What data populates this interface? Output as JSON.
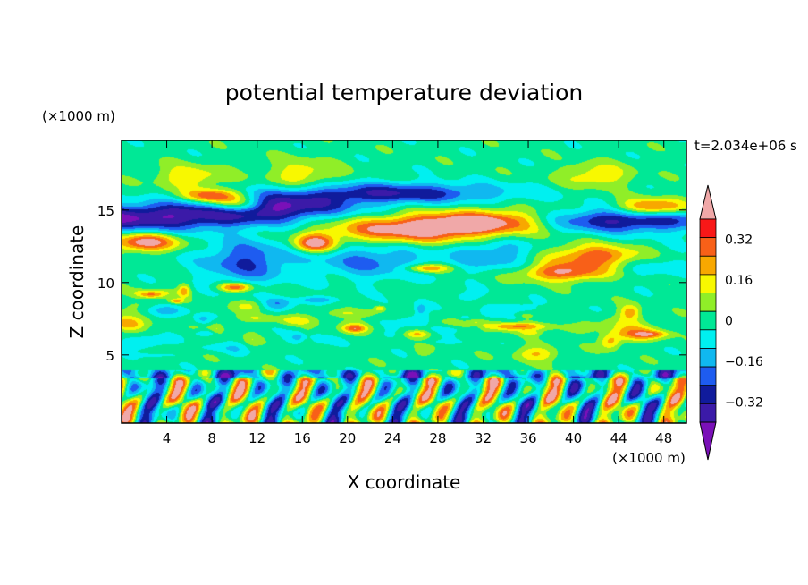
{
  "chart_data": {
    "type": "heatmap",
    "title": "potential temperature deviation",
    "xlabel": "X coordinate",
    "ylabel": "Z coordinate",
    "x_unit": "(×1000 m)",
    "y_unit": "(×1000 m)",
    "time_label": "t=2.034e+06 s",
    "xlim": [
      0,
      50
    ],
    "ylim": [
      0.3,
      19.8
    ],
    "x_ticks": [
      4,
      8,
      12,
      16,
      20,
      24,
      28,
      32,
      36,
      40,
      44,
      48
    ],
    "y_ticks": [
      5,
      10,
      15
    ],
    "colorbar": {
      "levels": [
        -0.4,
        -0.32,
        -0.24,
        -0.16,
        -0.08,
        0,
        0.08,
        0.16,
        0.24,
        0.32,
        0.4
      ],
      "tick_labels": [
        "0.32",
        "0.16",
        "0",
        "−0.16",
        "−0.32"
      ],
      "tick_values": [
        0.32,
        0.16,
        0,
        -0.16,
        -0.32
      ],
      "colors": [
        "#7a10b8",
        "#3b1aa8",
        "#101b9c",
        "#1e5cf0",
        "#10b8f0",
        "#00f0f0",
        "#00e896",
        "#90ee28",
        "#f8f800",
        "#f8a800",
        "#f86018",
        "#f81818",
        "#f0a8a8"
      ],
      "extend": "both"
    },
    "features": [
      {
        "x": 0,
        "z": 14.5,
        "v": -0.45,
        "rx": 14,
        "rz": 0.9
      },
      {
        "x": 13,
        "z": 15.3,
        "v": -0.4,
        "rx": 7,
        "rz": 0.8
      },
      {
        "x": 24,
        "z": 16.2,
        "v": -0.35,
        "rx": 10,
        "rz": 0.7
      },
      {
        "x": 44,
        "z": 14.3,
        "v": -0.4,
        "rx": 9,
        "rz": 0.8
      },
      {
        "x": 26,
        "z": 13.7,
        "v": 0.45,
        "rx": 8,
        "rz": 0.9
      },
      {
        "x": 33,
        "z": 14.3,
        "v": 0.38,
        "rx": 6,
        "rz": 0.8
      },
      {
        "x": 8,
        "z": 16.0,
        "v": 0.42,
        "rx": 2.5,
        "rz": 0.5
      },
      {
        "x": 10,
        "z": 15.4,
        "v": 0.42,
        "rx": 2.5,
        "rz": 0.6
      },
      {
        "x": 2,
        "z": 12.8,
        "v": 0.42,
        "rx": 3,
        "rz": 0.6
      },
      {
        "x": 17,
        "z": 12.7,
        "v": 0.42,
        "rx": 1.8,
        "rz": 0.6
      },
      {
        "x": 43,
        "z": 11.8,
        "v": 0.45,
        "rx": 5,
        "rz": 0.8
      },
      {
        "x": 39,
        "z": 10.7,
        "v": 0.35,
        "rx": 4,
        "rz": 0.6
      },
      {
        "x": 47,
        "z": 15.2,
        "v": 0.38,
        "rx": 3,
        "rz": 0.6
      },
      {
        "x": 16,
        "z": 17.5,
        "v": 0.18,
        "rx": 3,
        "rz": 1.0
      },
      {
        "x": 6,
        "z": 17.3,
        "v": 0.2,
        "rx": 3,
        "rz": 0.8
      },
      {
        "x": 42,
        "z": 17.4,
        "v": 0.2,
        "rx": 3,
        "rz": 0.8
      },
      {
        "x": 11,
        "z": 11.5,
        "v": -0.28,
        "rx": 4,
        "rz": 1.5
      },
      {
        "x": 22,
        "z": 11.5,
        "v": -0.22,
        "rx": 5,
        "rz": 1.2
      },
      {
        "x": 33,
        "z": 12.0,
        "v": -0.2,
        "rx": 4,
        "rz": 1.2
      },
      {
        "x": 46,
        "z": 11.6,
        "v": -0.25,
        "rx": 4,
        "rz": 1.0
      },
      {
        "x": 10,
        "z": 9.7,
        "v": 0.35,
        "rx": 1.5,
        "rz": 0.3
      },
      {
        "x": 27,
        "z": 11.0,
        "v": 0.3,
        "rx": 2,
        "rz": 0.3
      },
      {
        "x": 35,
        "z": 7.0,
        "v": 0.3,
        "rx": 3,
        "rz": 0.3
      }
    ],
    "boundary_layer": {
      "top": 4.0,
      "min_z": 0.3
    }
  }
}
